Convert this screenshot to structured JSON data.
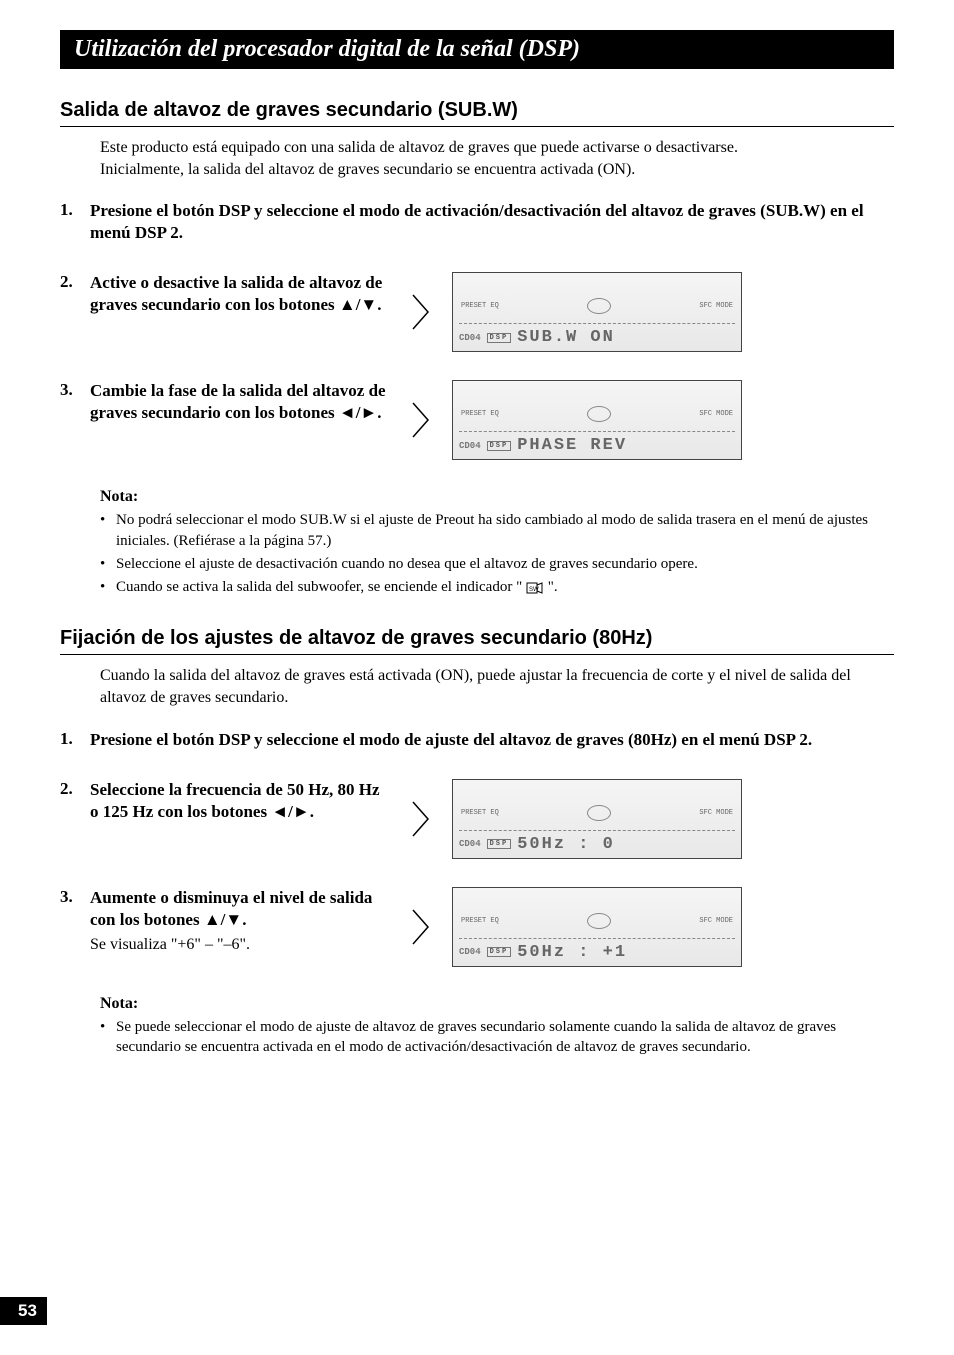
{
  "page_number": "53",
  "title_bar": "Utilización del procesador digital de la señal (DSP)",
  "colors": {
    "bar_bg": "#000000",
    "bar_text": "#ffffff",
    "body_text": "#000000",
    "lcd_text": "#666666"
  },
  "section1": {
    "heading": "Salida de altavoz de graves secundario (SUB.W)",
    "intro": "Este producto está equipado con una salida de altavoz de graves que puede activarse o desactivarse.\nInicialmente, la salida del altavoz de graves secundario se encuentra activada (ON).",
    "steps": [
      {
        "num": "1.",
        "text": "Presione el botón DSP y seleccione el modo de activación/desactivación del altavoz de graves (SUB.W) en el menú DSP 2.",
        "has_display": false
      },
      {
        "num": "2.",
        "text": "Active o desactive la salida de altavoz de graves secundario con los botones ▲/▼.",
        "has_display": true,
        "lcd_prefix": "CD04",
        "lcd_main": "SUB.W  ON"
      },
      {
        "num": "3.",
        "text": "Cambie la fase de la salida del altavoz de graves secundario con los botones ◄/►.",
        "has_display": true,
        "lcd_prefix": "CD04",
        "lcd_main": "PHASE  REV"
      }
    ],
    "note_label": "Nota:",
    "notes": [
      "No podrá seleccionar el modo SUB.W si el ajuste de Preout ha sido cambiado al modo de salida trasera en el menú de ajustes iniciales. (Refiérase a la página 57.)",
      "Seleccione el ajuste de desactivación cuando no desea que el altavoz de graves secundario opere.",
      "Cuando se activa la salida del subwoofer, se enciende el indicador \" {SW_ICON} \"."
    ]
  },
  "section2": {
    "heading": "Fijación de los ajustes de altavoz de graves secundario (80Hz)",
    "intro": "Cuando la salida del altavoz de graves está activada (ON), puede ajustar la frecuencia de corte y el nivel de salida del altavoz de graves secundario.",
    "steps": [
      {
        "num": "1.",
        "text": "Presione el botón DSP y seleccione el modo de ajuste del altavoz de graves (80Hz) en el menú DSP 2.",
        "has_display": false
      },
      {
        "num": "2.",
        "text": "Seleccione la frecuencia de 50 Hz, 80 Hz o 125 Hz con los botones ◄/►.",
        "has_display": true,
        "lcd_prefix": "CD04",
        "lcd_main": "50Hz :  0"
      },
      {
        "num": "3.",
        "text": "Aumente o disminuya el nivel de salida con los botones ▲/▼.",
        "subtext": "Se visualiza \"+6\" – \"–6\".",
        "has_display": true,
        "lcd_prefix": "CD04",
        "lcd_main": "50Hz : +1"
      }
    ],
    "note_label": "Nota:",
    "notes": [
      "Se puede seleccionar el modo de ajuste de altavoz de graves secundario solamente cuando la salida de altavoz de graves secundario se encuentra activada en el modo de activación/desactivación de altavoz de graves secundario."
    ]
  }
}
